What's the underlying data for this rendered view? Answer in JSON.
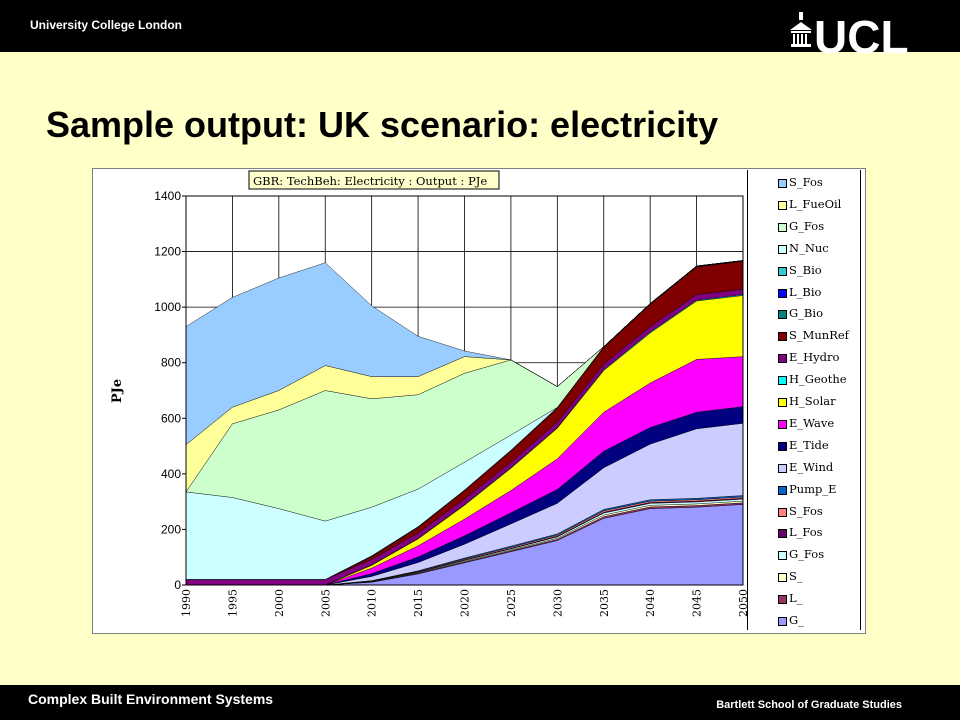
{
  "header": {
    "university": "University College London",
    "logo_text": "UCL"
  },
  "slide": {
    "title": "Sample output: UK scenario: electricity"
  },
  "footer": {
    "left": "Complex Built Environment Systems",
    "right": "Bartlett School of Graduate Studies"
  },
  "chart_data": {
    "type": "area",
    "stacked": true,
    "title": "GBR: TechBeh: Electricity : Output : PJe",
    "ylabel": "PJe",
    "xlabel": "",
    "ylim": [
      0,
      1400
    ],
    "yticks": [
      0,
      200,
      400,
      600,
      800,
      1000,
      1200,
      1400
    ],
    "grid": true,
    "legend_position": "right",
    "x": [
      "1990",
      "1995",
      "2000",
      "2005",
      "2010",
      "2015",
      "2020",
      "2025",
      "2030",
      "2035",
      "2040",
      "2045",
      "2050"
    ],
    "series": [
      {
        "name": "G_",
        "color": "#9999ff",
        "values": [
          0,
          0,
          0,
          0,
          10,
          40,
          80,
          120,
          160,
          240,
          275,
          280,
          290
        ]
      },
      {
        "name": "L_",
        "color": "#993366",
        "values": [
          0,
          0,
          0,
          0,
          1,
          2,
          3,
          3,
          4,
          6,
          6,
          6,
          6
        ]
      },
      {
        "name": "S_",
        "color": "#ffffcc",
        "values": [
          0,
          0,
          0,
          0,
          1,
          2,
          3,
          3,
          4,
          6,
          6,
          6,
          6
        ]
      },
      {
        "name": "G_Fos",
        "color": "#ccffff",
        "values": [
          0,
          0,
          0,
          0,
          1,
          2,
          3,
          4,
          5,
          7,
          7,
          7,
          7
        ]
      },
      {
        "name": "L_Fos",
        "color": "#660066",
        "values": [
          0,
          0,
          0,
          0,
          1,
          1,
          2,
          2,
          3,
          3,
          3,
          3,
          3
        ]
      },
      {
        "name": "S_Fos",
        "color": "#ff8080",
        "values": [
          0,
          0,
          0,
          0,
          1,
          2,
          3,
          4,
          4,
          5,
          5,
          5,
          5
        ]
      },
      {
        "name": "Pump_E",
        "color": "#0066cc",
        "values": [
          0,
          0,
          0,
          0,
          1,
          2,
          3,
          4,
          4,
          5,
          5,
          5,
          5
        ]
      },
      {
        "name": "E_Wind",
        "color": "#ccccff",
        "values": [
          0,
          0,
          0,
          0,
          15,
          30,
          50,
          80,
          110,
          150,
          200,
          250,
          260
        ]
      },
      {
        "name": "E_Tide",
        "color": "#000080",
        "values": [
          0,
          0,
          0,
          0,
          10,
          20,
          30,
          40,
          50,
          60,
          60,
          60,
          60
        ]
      },
      {
        "name": "E_Wave",
        "color": "#ff00ff",
        "values": [
          0,
          0,
          0,
          0,
          20,
          40,
          60,
          80,
          110,
          140,
          160,
          190,
          180
        ]
      },
      {
        "name": "H_Solar",
        "color": "#ffff00",
        "values": [
          0,
          0,
          0,
          0,
          10,
          25,
          50,
          80,
          110,
          150,
          180,
          210,
          220
        ]
      },
      {
        "name": "H_Geothe",
        "color": "#00ffff",
        "values": [
          0,
          0,
          0,
          0,
          1,
          1,
          2,
          2,
          2,
          3,
          3,
          3,
          3
        ]
      },
      {
        "name": "E_Hydro",
        "color": "#800080",
        "values": [
          20,
          20,
          20,
          20,
          20,
          20,
          20,
          20,
          20,
          20,
          20,
          20,
          20
        ]
      },
      {
        "name": "S_MunRef",
        "color": "#800000",
        "values": [
          0,
          0,
          0,
          0,
          10,
          20,
          30,
          40,
          50,
          60,
          80,
          100,
          100
        ]
      },
      {
        "name": "G_Bio",
        "color": "#008080",
        "values": [
          0,
          0,
          0,
          0,
          1,
          1,
          1,
          1,
          1,
          1,
          1,
          1,
          1
        ]
      },
      {
        "name": "L_Bio",
        "color": "#0000ff",
        "values": [
          0,
          0,
          0,
          0,
          1,
          1,
          1,
          1,
          1,
          1,
          1,
          1,
          1
        ]
      },
      {
        "name": "S_Bio",
        "color": "#33cccc",
        "values": [
          0,
          0,
          0,
          0,
          1,
          1,
          1,
          1,
          1,
          1,
          1,
          1,
          1
        ]
      },
      {
        "name": "N_Nuc",
        "color": "#ccffff",
        "values": [
          315,
          295,
          255,
          210,
          175,
          135,
          100,
          55,
          0,
          0,
          0,
          0,
          0
        ]
      },
      {
        "name": "G_Fos",
        "color": "#ccffcc",
        "values": [
          0,
          265,
          355,
          470,
          390,
          340,
          320,
          270,
          75,
          0,
          0,
          0,
          0
        ]
      },
      {
        "name": "L_FueOil",
        "color": "#ffff99",
        "values": [
          170,
          60,
          70,
          90,
          80,
          65,
          60,
          0,
          0,
          0,
          0,
          0,
          0
        ]
      },
      {
        "name": "S_Fos",
        "color": "#99ccff",
        "values": [
          425,
          395,
          405,
          370,
          255,
          145,
          20,
          0,
          0,
          0,
          0,
          0,
          0
        ]
      }
    ],
    "legend_order": [
      "S_Fos",
      "L_FueOil",
      "G_Fos",
      "N_Nuc",
      "S_Bio",
      "L_Bio",
      "G_Bio",
      "S_MunRef",
      "E_Hydro",
      "H_Geothe",
      "H_Solar",
      "E_Wave",
      "E_Tide",
      "E_Wind",
      "Pump_E",
      "S_Fos",
      "L_Fos",
      "G_Fos",
      "S_",
      "L_",
      "G_"
    ]
  }
}
